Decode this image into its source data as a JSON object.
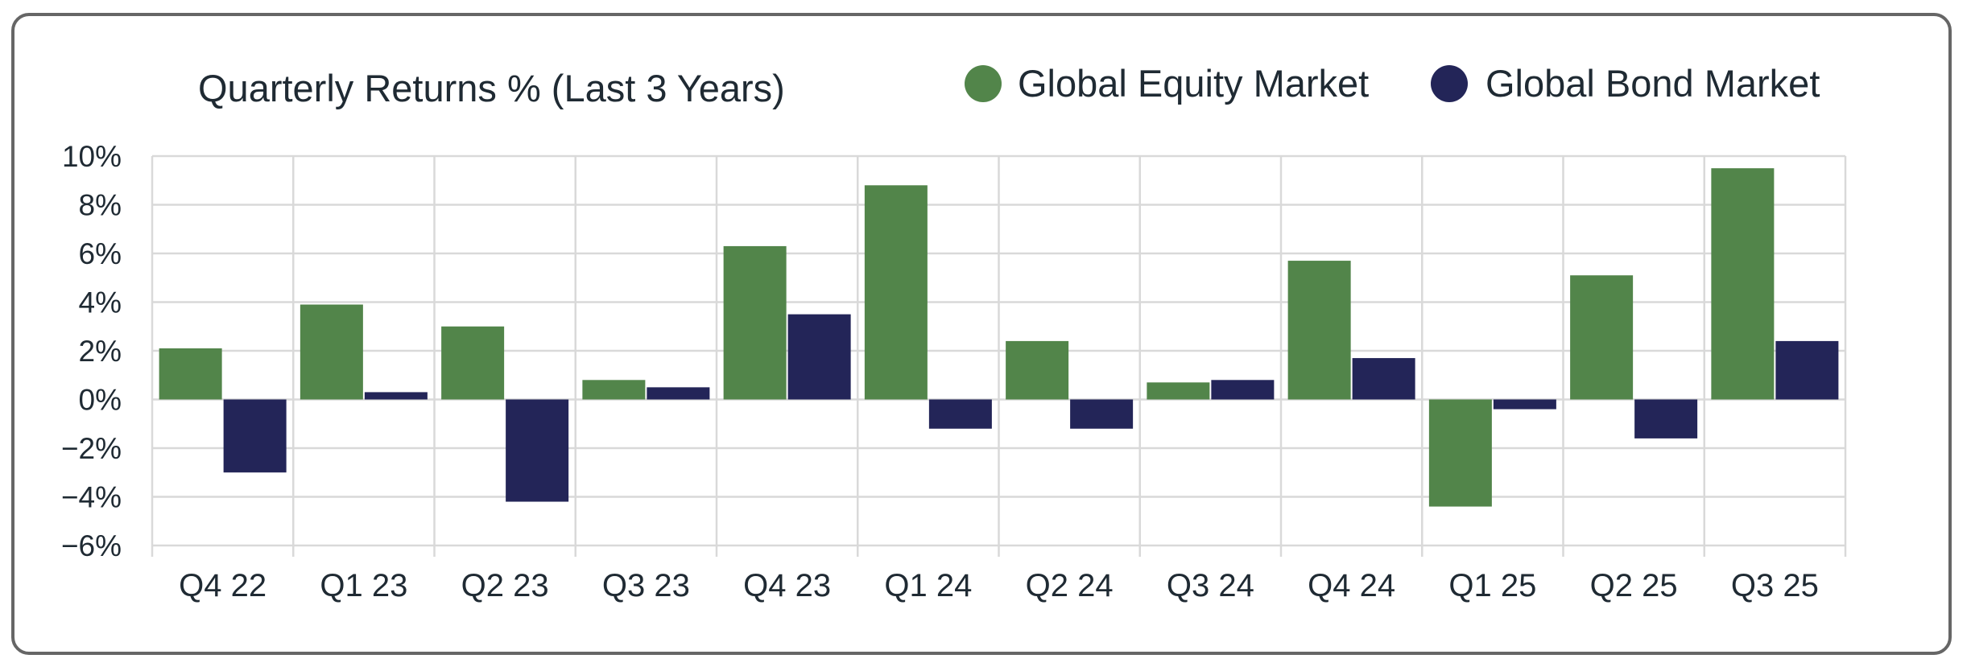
{
  "chart_data": {
    "type": "bar",
    "title": "Quarterly Returns % (Last 3 Years)",
    "xlabel": "",
    "ylabel": "",
    "categories": [
      "Q4 22",
      "Q1 23",
      "Q2 23",
      "Q3 23",
      "Q4 23",
      "Q1 24",
      "Q2 24",
      "Q3 24",
      "Q4 24",
      "Q1 25",
      "Q2 25",
      "Q3 25"
    ],
    "series": [
      {
        "name": "Global Equity Market",
        "color": "#52854a",
        "values": [
          2.1,
          3.9,
          3.0,
          0.8,
          6.3,
          8.8,
          2.4,
          0.7,
          5.7,
          -4.4,
          5.1,
          9.5
        ]
      },
      {
        "name": "Global Bond Market",
        "color": "#232558",
        "values": [
          -3.0,
          0.3,
          -4.2,
          0.5,
          3.5,
          -1.2,
          -1.2,
          0.8,
          1.7,
          -0.4,
          -1.6,
          2.4
        ]
      }
    ],
    "ylim": [
      -6,
      10
    ],
    "yticks": [
      10,
      8,
      6,
      4,
      2,
      0,
      -2,
      -4,
      -6
    ],
    "ytick_labels": [
      "10%",
      "8%",
      "6%",
      "4%",
      "2%",
      "0%",
      "−2%",
      "−4%",
      "−6%"
    ],
    "grid": true,
    "legend_position": "top-right"
  }
}
